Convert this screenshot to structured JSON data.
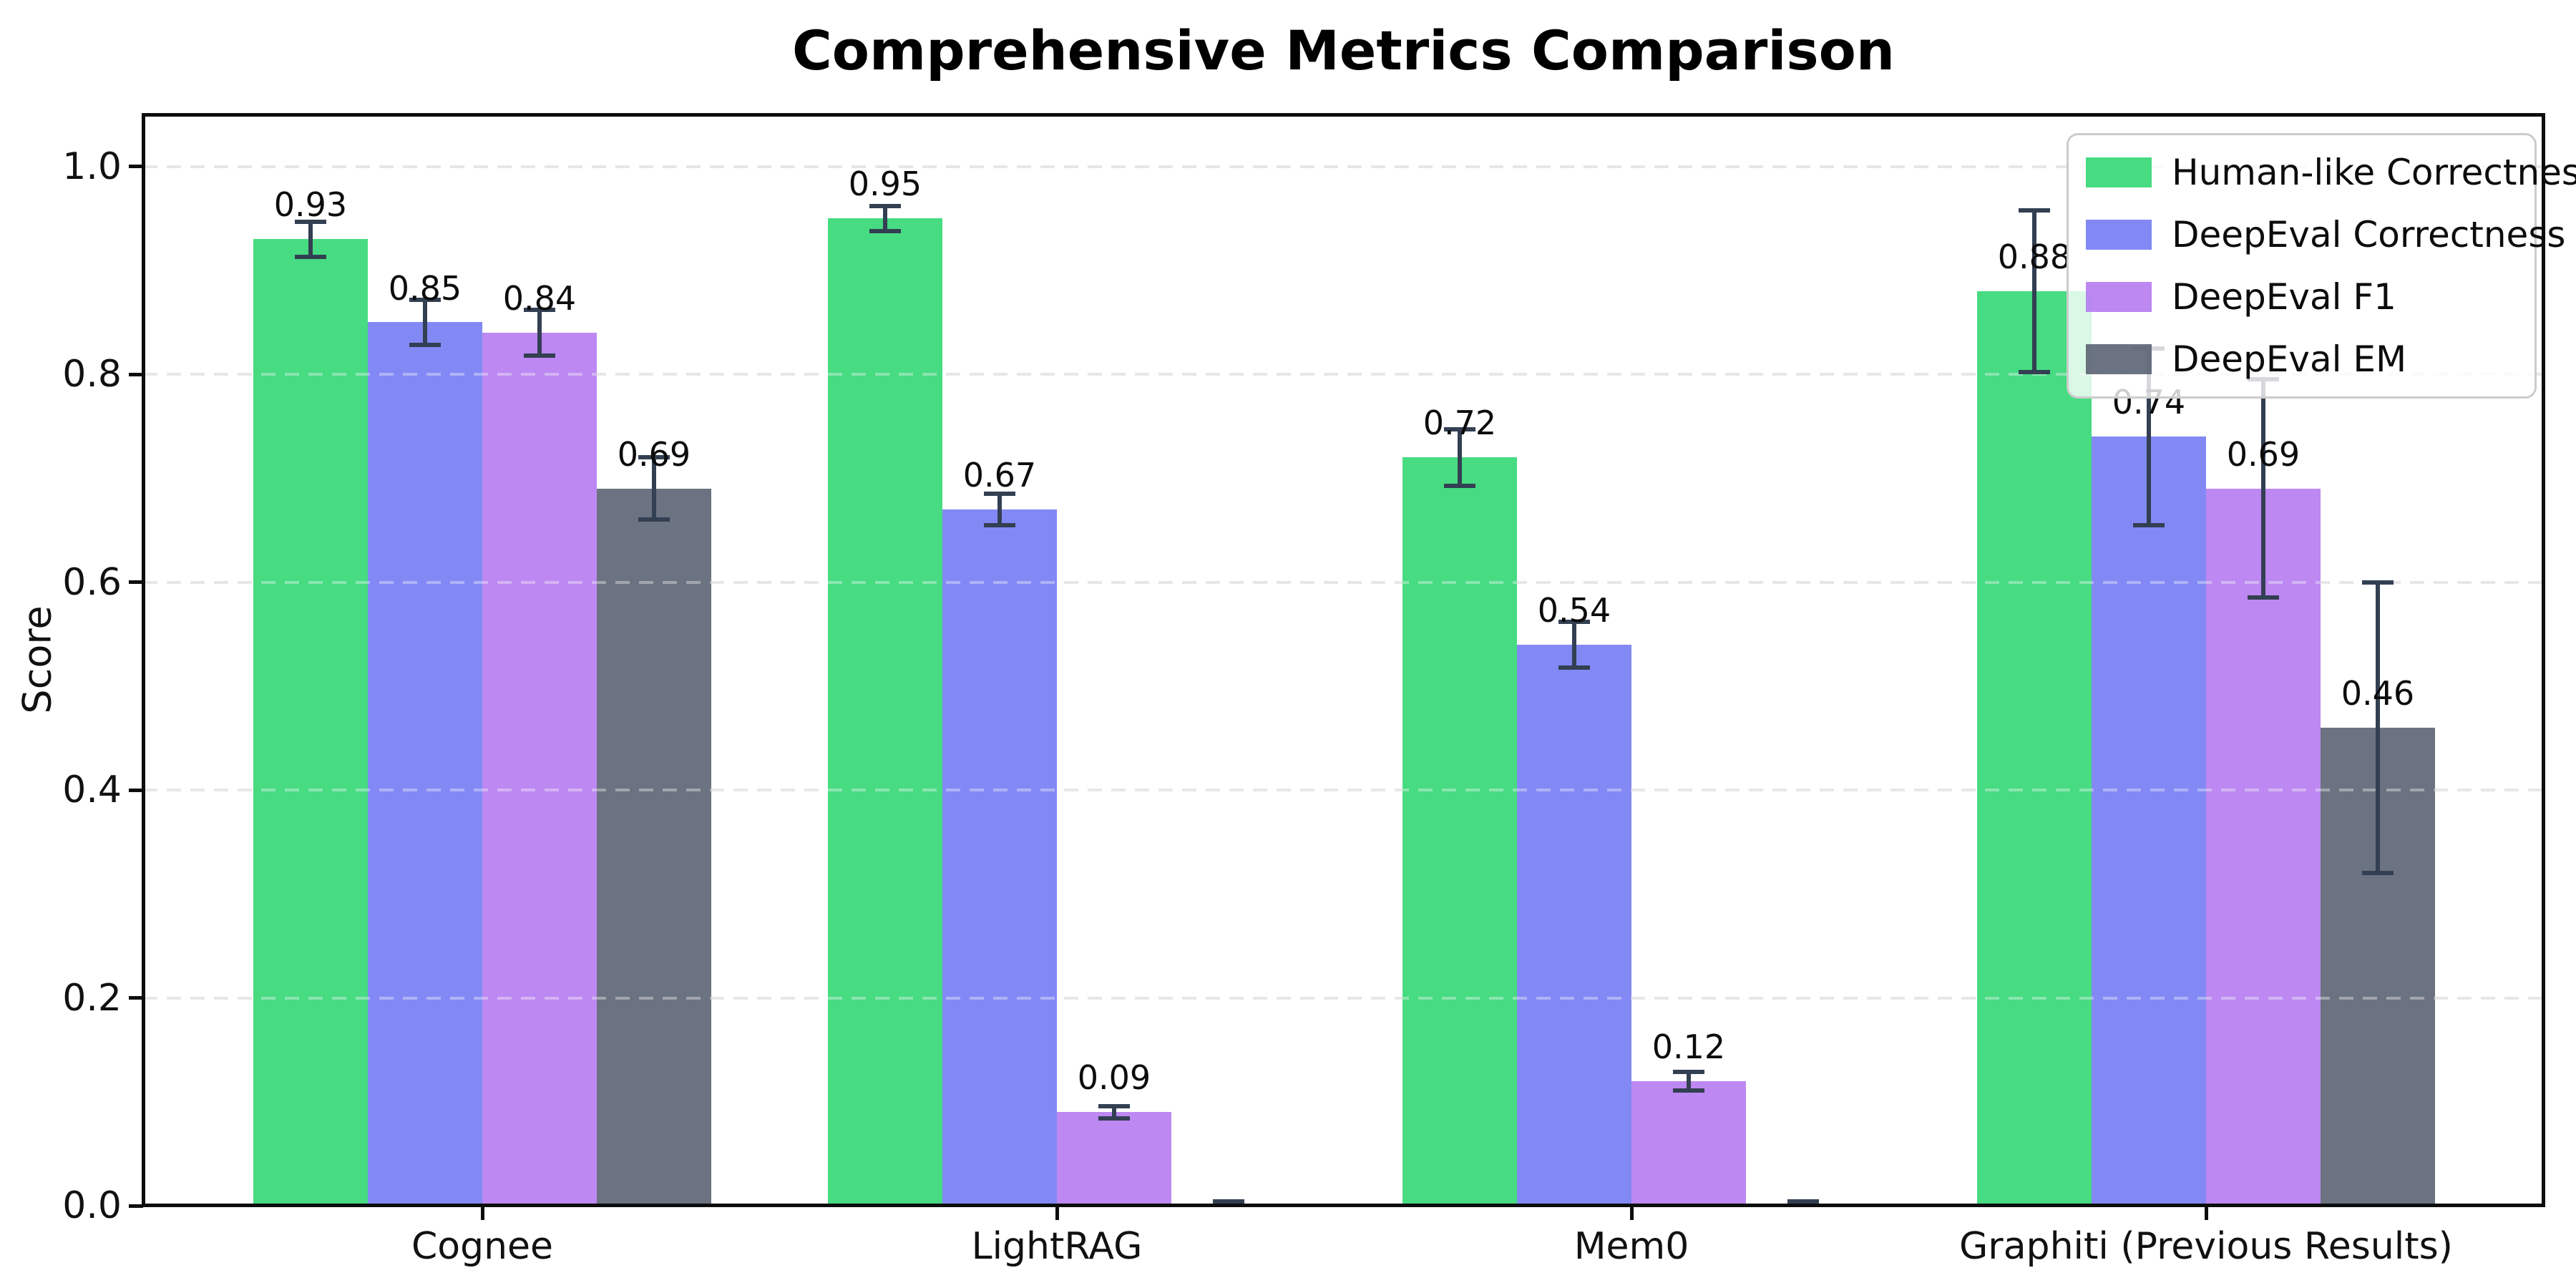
{
  "title": "Comprehensive Metrics Comparison",
  "chart_data": {
    "type": "bar",
    "title": "Comprehensive Metrics Comparison",
    "xlabel": "",
    "ylabel": "Score",
    "categories": [
      "Cognee",
      "LightRAG",
      "Mem0",
      "Graphiti (Previous Results)"
    ],
    "series": [
      {
        "name": "Human-like Correctness",
        "color": "#2dd671",
        "values": [
          0.93,
          0.95,
          0.72,
          0.88
        ],
        "errors": [
          0.017,
          0.012,
          0.027,
          0.078
        ]
      },
      {
        "name": "DeepEval Correctness",
        "color": "#7179f4",
        "values": [
          0.85,
          0.67,
          0.54,
          0.74
        ],
        "errors": [
          0.022,
          0.015,
          0.022,
          0.085
        ]
      },
      {
        "name": "DeepEval F1",
        "color": "#b478f0",
        "values": [
          0.84,
          0.09,
          0.12,
          0.69
        ],
        "errors": [
          0.022,
          0.006,
          0.009,
          0.105
        ]
      },
      {
        "name": "DeepEval EM",
        "color": "#575f6f",
        "values": [
          0.69,
          0.0,
          0.0,
          0.46
        ],
        "errors": [
          0.03,
          0.004,
          0.004,
          0.14
        ]
      }
    ],
    "ylim": [
      0,
      1.05
    ],
    "yticks": [
      "0.0",
      "0.2",
      "0.4",
      "0.6",
      "0.8",
      "1.0"
    ],
    "grid": "horizontal-dashed",
    "grid_color": "#d8d8d8",
    "error_bar_color": "#333f52",
    "bar_alpha": 0.88,
    "legend_position": "upper-right",
    "value_label_format": "two-decimals"
  }
}
